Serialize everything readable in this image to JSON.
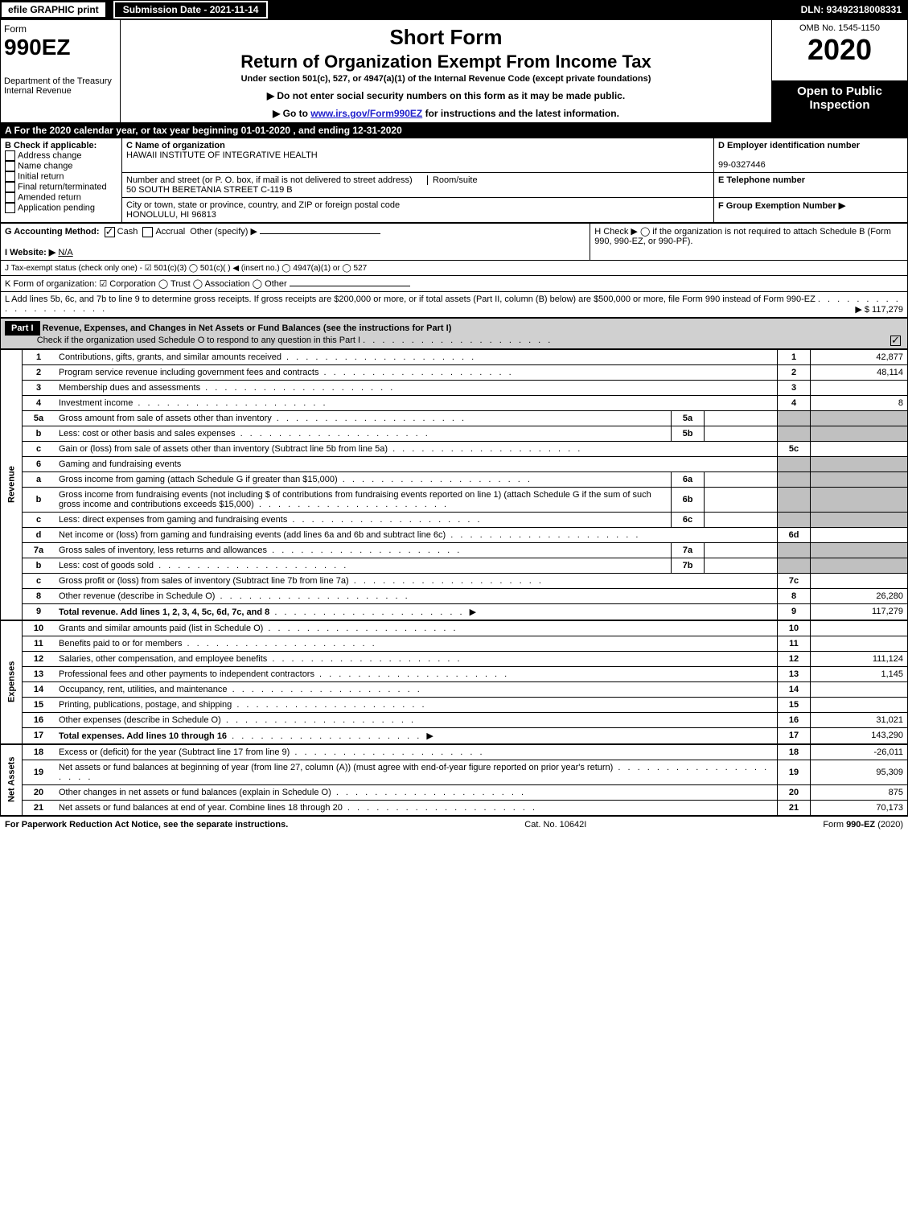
{
  "topbar": {
    "efile": "efile GRAPHIC print",
    "submission": "Submission Date - 2021-11-14",
    "dln": "DLN: 93492318008331"
  },
  "header": {
    "form_word": "Form",
    "form_no": "990EZ",
    "dept": "Department of the Treasury Internal Revenue",
    "short_form": "Short Form",
    "title": "Return of Organization Exempt From Income Tax",
    "under": "Under section 501(c), 527, or 4947(a)(1) of the Internal Revenue Code (except private foundations)",
    "note1": "▶ Do not enter social security numbers on this form as it may be made public.",
    "note2_pre": "▶ Go to ",
    "note2_link": "www.irs.gov/Form990EZ",
    "note2_post": " for instructions and the latest information.",
    "omb": "OMB No. 1545-1150",
    "year": "2020",
    "open": "Open to Public Inspection"
  },
  "line_a": "A For the 2020 calendar year, or tax year beginning 01-01-2020 , and ending 12-31-2020",
  "box_b": {
    "title": "B  Check if applicable:",
    "addr": "Address change",
    "name": "Name change",
    "init": "Initial return",
    "final": "Final return/terminated",
    "amend": "Amended return",
    "app": "Application pending"
  },
  "box_c": {
    "label": "C Name of organization",
    "name": "HAWAII INSTITUTE OF INTEGRATIVE HEALTH",
    "street_label": "Number and street (or P. O. box, if mail is not delivered to street address)",
    "street": "50 SOUTH BERETANIA STREET C-119 B",
    "room_label": "Room/suite",
    "city_label": "City or town, state or province, country, and ZIP or foreign postal code",
    "city": "HONOLULU, HI   96813"
  },
  "box_d": {
    "label": "D Employer identification number",
    "value": "99-0327446"
  },
  "box_e": {
    "label": "E Telephone number",
    "value": ""
  },
  "box_f": {
    "label": "F Group Exemption Number   ▶",
    "value": ""
  },
  "line_g": "G Accounting Method:",
  "line_g_cash": "Cash",
  "line_g_accrual": "Accrual",
  "line_g_other": "Other (specify) ▶",
  "line_h": "H  Check ▶  ◯  if the organization is not required to attach Schedule B (Form 990, 990-EZ, or 990-PF).",
  "line_i": "I Website: ▶",
  "line_i_val": "N/A",
  "line_j": "J Tax-exempt status (check only one) - ☑ 501(c)(3) ◯ 501(c)(  ) ◀ (insert no.) ◯ 4947(a)(1) or ◯ 527",
  "line_k": "K Form of organization:  ☑ Corporation  ◯ Trust  ◯ Association  ◯ Other",
  "line_l": "L Add lines 5b, 6c, and 7b to line 9 to determine gross receipts. If gross receipts are $200,000 or more, or if total assets (Part II, column (B) below) are $500,000 or more, file Form 990 instead of Form 990-EZ",
  "line_l_amt": "▶ $ 117,279",
  "part1": {
    "label": "Part I",
    "title": "Revenue, Expenses, and Changes in Net Assets or Fund Balances (see the instructions for Part I)",
    "check": "Check if the organization used Schedule O to respond to any question in this Part I"
  },
  "sections": {
    "revenue": "Revenue",
    "expenses": "Expenses",
    "netassets": "Net Assets"
  },
  "rows": [
    {
      "n": "1",
      "d": "Contributions, gifts, grants, and similar amounts received",
      "ln": "1",
      "amt": "42,877"
    },
    {
      "n": "2",
      "d": "Program service revenue including government fees and contracts",
      "ln": "2",
      "amt": "48,114"
    },
    {
      "n": "3",
      "d": "Membership dues and assessments",
      "ln": "3",
      "amt": ""
    },
    {
      "n": "4",
      "d": "Investment income",
      "ln": "4",
      "amt": "8"
    },
    {
      "n": "5a",
      "d": "Gross amount from sale of assets other than inventory",
      "sub": "5a",
      "subamt": ""
    },
    {
      "n": "b",
      "d": "Less: cost or other basis and sales expenses",
      "sub": "5b",
      "subamt": ""
    },
    {
      "n": "c",
      "d": "Gain or (loss) from sale of assets other than inventory (Subtract line 5b from line 5a)",
      "ln": "5c",
      "amt": ""
    },
    {
      "n": "6",
      "d": "Gaming and fundraising events"
    },
    {
      "n": "a",
      "d": "Gross income from gaming (attach Schedule G if greater than $15,000)",
      "sub": "6a",
      "subamt": ""
    },
    {
      "n": "b",
      "d": "Gross income from fundraising events (not including $              of contributions from fundraising events reported on line 1) (attach Schedule G if the sum of such gross income and contributions exceeds $15,000)",
      "sub": "6b",
      "subamt": ""
    },
    {
      "n": "c",
      "d": "Less: direct expenses from gaming and fundraising events",
      "sub": "6c",
      "subamt": ""
    },
    {
      "n": "d",
      "d": "Net income or (loss) from gaming and fundraising events (add lines 6a and 6b and subtract line 6c)",
      "ln": "6d",
      "amt": ""
    },
    {
      "n": "7a",
      "d": "Gross sales of inventory, less returns and allowances",
      "sub": "7a",
      "subamt": ""
    },
    {
      "n": "b",
      "d": "Less: cost of goods sold",
      "sub": "7b",
      "subamt": ""
    },
    {
      "n": "c",
      "d": "Gross profit or (loss) from sales of inventory (Subtract line 7b from line 7a)",
      "ln": "7c",
      "amt": ""
    },
    {
      "n": "8",
      "d": "Other revenue (describe in Schedule O)",
      "ln": "8",
      "amt": "26,280"
    },
    {
      "n": "9",
      "d": "Total revenue. Add lines 1, 2, 3, 4, 5c, 6d, 7c, and 8",
      "ln": "9",
      "amt": "117,279",
      "bold": true,
      "arrow": true
    }
  ],
  "exp_rows": [
    {
      "n": "10",
      "d": "Grants and similar amounts paid (list in Schedule O)",
      "ln": "10",
      "amt": ""
    },
    {
      "n": "11",
      "d": "Benefits paid to or for members",
      "ln": "11",
      "amt": ""
    },
    {
      "n": "12",
      "d": "Salaries, other compensation, and employee benefits",
      "ln": "12",
      "amt": "111,124"
    },
    {
      "n": "13",
      "d": "Professional fees and other payments to independent contractors",
      "ln": "13",
      "amt": "1,145"
    },
    {
      "n": "14",
      "d": "Occupancy, rent, utilities, and maintenance",
      "ln": "14",
      "amt": ""
    },
    {
      "n": "15",
      "d": "Printing, publications, postage, and shipping",
      "ln": "15",
      "amt": ""
    },
    {
      "n": "16",
      "d": "Other expenses (describe in Schedule O)",
      "ln": "16",
      "amt": "31,021"
    },
    {
      "n": "17",
      "d": "Total expenses. Add lines 10 through 16",
      "ln": "17",
      "amt": "143,290",
      "bold": true,
      "arrow": true
    }
  ],
  "net_rows": [
    {
      "n": "18",
      "d": "Excess or (deficit) for the year (Subtract line 17 from line 9)",
      "ln": "18",
      "amt": "-26,011"
    },
    {
      "n": "19",
      "d": "Net assets or fund balances at beginning of year (from line 27, column (A)) (must agree with end-of-year figure reported on prior year's return)",
      "ln": "19",
      "amt": "95,309"
    },
    {
      "n": "20",
      "d": "Other changes in net assets or fund balances (explain in Schedule O)",
      "ln": "20",
      "amt": "875"
    },
    {
      "n": "21",
      "d": "Net assets or fund balances at end of year. Combine lines 18 through 20",
      "ln": "21",
      "amt": "70,173"
    }
  ],
  "footer": {
    "left": "For Paperwork Reduction Act Notice, see the separate instructions.",
    "mid": "Cat. No. 10642I",
    "right": "Form 990-EZ (2020)"
  }
}
